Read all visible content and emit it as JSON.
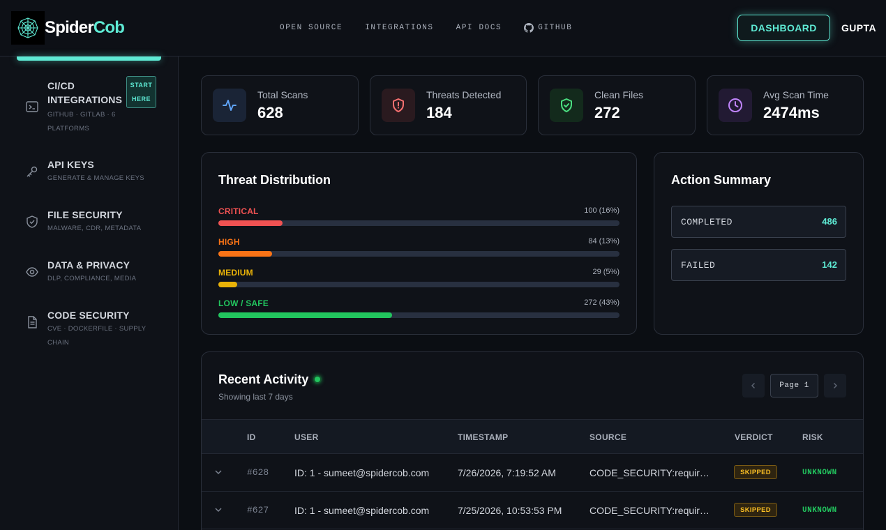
{
  "brand": {
    "name_part1": "Spider",
    "name_part2": "Cob"
  },
  "topnav": {
    "items": [
      {
        "label": "OPEN SOURCE"
      },
      {
        "label": "INTEGRATIONS"
      },
      {
        "label": "API DOCS"
      },
      {
        "label": "GITHUB",
        "icon": "github-icon"
      }
    ],
    "dashboard_label": "DASHBOARD",
    "user": "GUPTA"
  },
  "sidebar": {
    "items": [
      {
        "title_line1": "CI/CD",
        "title_line2": "INTEGRATIONS",
        "sub_line1": "GITHUB · GITLAB · 6",
        "sub_line2": "PLATFORMS",
        "badge_line1": "START",
        "badge_line2": "HERE",
        "icon": "terminal-icon"
      },
      {
        "title": "API KEYS",
        "sub": "GENERATE & MANAGE KEYS",
        "icon": "key-icon"
      },
      {
        "title": "FILE SECURITY",
        "sub": "MALWARE, CDR, METADATA",
        "icon": "shield-icon"
      },
      {
        "title": "DATA & PRIVACY",
        "sub": "DLP, COMPLIANCE, MEDIA",
        "icon": "eye-icon"
      },
      {
        "title": "CODE SECURITY",
        "sub_line1": "CVE · DOCKERFILE · SUPPLY",
        "sub_line2": "CHAIN",
        "icon": "file-icon"
      }
    ]
  },
  "stats": [
    {
      "label": "Total Scans",
      "value": "628",
      "icon": "activity-icon",
      "color": "#60a5fa"
    },
    {
      "label": "Threats Detected",
      "value": "184",
      "icon": "shield-alert-icon",
      "color": "#f87171"
    },
    {
      "label": "Clean Files",
      "value": "272",
      "icon": "shield-check-icon",
      "color": "#4ade80"
    },
    {
      "label": "Avg Scan Time",
      "value": "2474ms",
      "icon": "clock-icon",
      "color": "#c084fc"
    }
  ],
  "threat_distribution": {
    "title": "Threat Distribution",
    "rows": [
      {
        "label": "CRITICAL",
        "value_text": "100 (16%)",
        "fraction": 0.16,
        "color": "#f05252"
      },
      {
        "label": "HIGH",
        "value_text": "84 (13%)",
        "fraction": 0.134,
        "color": "#f97316"
      },
      {
        "label": "MEDIUM",
        "value_text": "29 (5%)",
        "fraction": 0.047,
        "color": "#eab308"
      },
      {
        "label": "LOW / SAFE",
        "value_text": "272 (43%)",
        "fraction": 0.433,
        "color": "#22c55e"
      }
    ]
  },
  "action_summary": {
    "title": "Action Summary",
    "items": [
      {
        "label": "COMPLETED",
        "value": "486"
      },
      {
        "label": "FAILED",
        "value": "142"
      }
    ]
  },
  "activity": {
    "title": "Recent Activity",
    "subtitle": "Showing last 7 days",
    "page_label": "Page 1",
    "columns": [
      "ID",
      "USER",
      "TIMESTAMP",
      "SOURCE",
      "VERDICT",
      "RISK"
    ],
    "rows": [
      {
        "id": "#628",
        "user": "ID: 1 - sumeet@spidercob.com",
        "timestamp": "7/26/2026, 7:19:52 AM",
        "source": "CODE_SECURITY:requir…",
        "verdict": "SKIPPED",
        "risk": "UNKNOWN"
      },
      {
        "id": "#627",
        "user": "ID: 1 - sumeet@spidercob.com",
        "timestamp": "7/25/2026, 10:53:53 PM",
        "source": "CODE_SECURITY:requir…",
        "verdict": "SKIPPED",
        "risk": "UNKNOWN"
      }
    ]
  }
}
